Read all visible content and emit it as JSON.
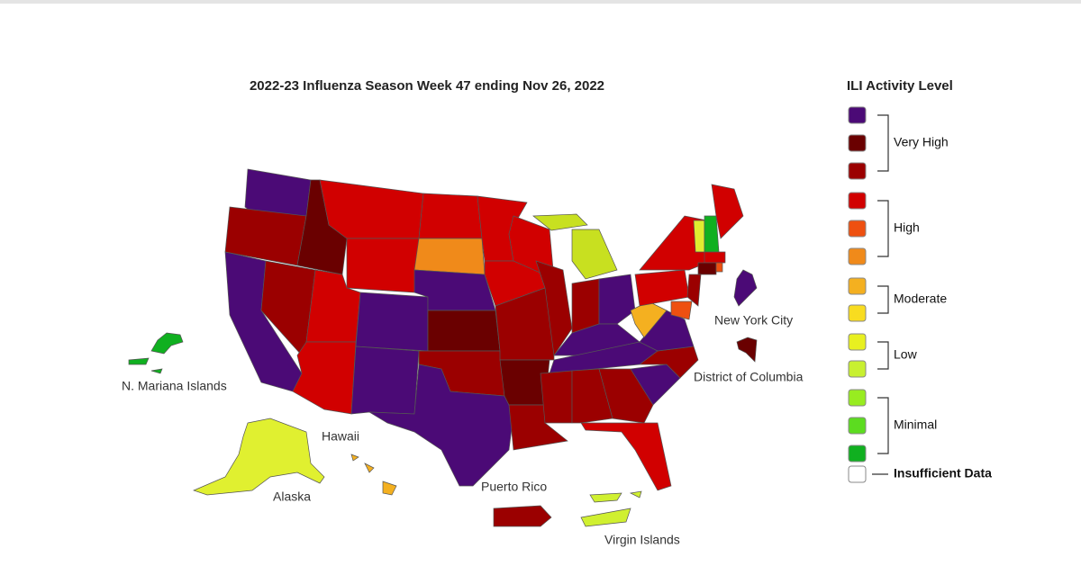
{
  "title": "2022-23 Influenza Season Week 47 ending Nov 26, 2022",
  "map_labels": [
    "New York City",
    "District of Columbia",
    "N. Mariana Islands",
    "Hawaii",
    "Alaska",
    "Puerto Rico",
    "Virgin Islands"
  ],
  "legend": {
    "title": "ILI Activity Level",
    "groups": [
      {
        "label": "Very High",
        "colors": [
          "#4b0a76",
          "#6a0000",
          "#9b0000"
        ]
      },
      {
        "label": "High",
        "colors": [
          "#d10000",
          "#ee5010",
          "#f08a1a"
        ]
      },
      {
        "label": "Moderate",
        "colors": [
          "#f4b020",
          "#f8dc20"
        ]
      },
      {
        "label": "Low",
        "colors": [
          "#e8f020",
          "#c8f030"
        ]
      },
      {
        "label": "Minimal",
        "colors": [
          "#98ec20",
          "#5cdc20",
          "#10b020"
        ]
      }
    ],
    "insufficient": {
      "label": "Insufficient Data",
      "color": "#ffffff"
    }
  }
}
